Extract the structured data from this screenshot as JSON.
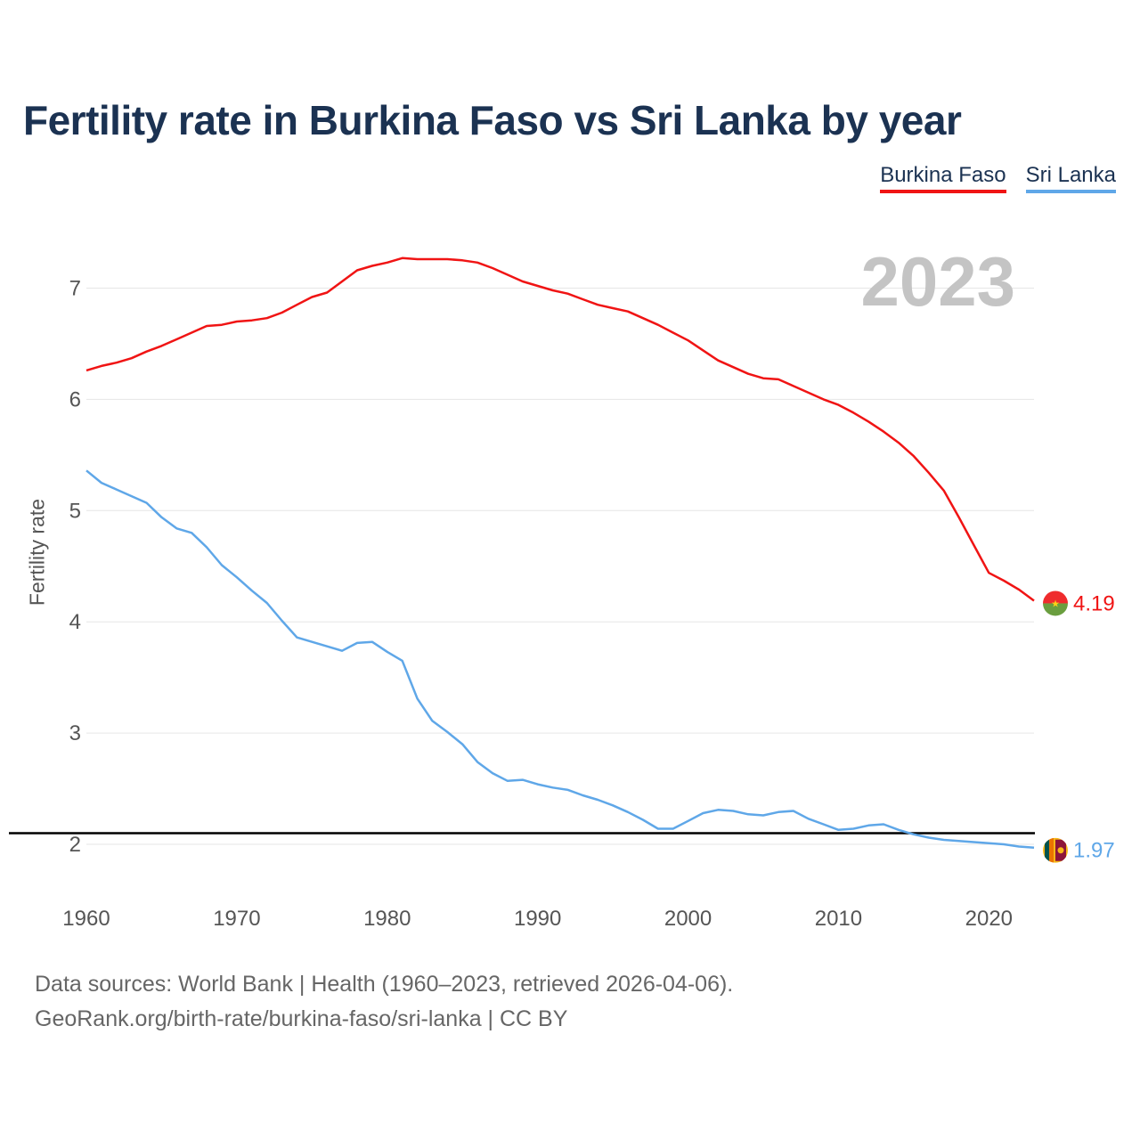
{
  "title": "Fertility rate in Burkina Faso vs Sri Lanka by year",
  "legend": [
    {
      "name": "Burkina Faso",
      "color": "#f01414"
    },
    {
      "name": "Sri Lanka",
      "color": "#5fa7e8"
    }
  ],
  "sources": {
    "line1": "Data sources: World Bank | Health (1960–2023, retrieved 2026-04-06).",
    "line2": "GeoRank.org/birth-rate/burkina-faso/sri-lanka | CC BY"
  },
  "chart_data": {
    "type": "line",
    "title": "Fertility rate in Burkina Faso vs Sri Lanka by year",
    "xlabel": "",
    "ylabel": "Fertility rate",
    "xlim": [
      1960,
      2023
    ],
    "ylim": [
      1.5,
      7.5
    ],
    "x_ticks": [
      1960,
      1970,
      1980,
      1990,
      2000,
      2010,
      2020
    ],
    "y_ticks": [
      2,
      3,
      4,
      5,
      6,
      7
    ],
    "year_label": "2023",
    "reference_line": 2.1,
    "x": [
      1960,
      1961,
      1962,
      1963,
      1964,
      1965,
      1966,
      1967,
      1968,
      1969,
      1970,
      1971,
      1972,
      1973,
      1974,
      1975,
      1976,
      1977,
      1978,
      1979,
      1980,
      1981,
      1982,
      1983,
      1984,
      1985,
      1986,
      1987,
      1988,
      1989,
      1990,
      1991,
      1992,
      1993,
      1994,
      1995,
      1996,
      1997,
      1998,
      1999,
      2000,
      2001,
      2002,
      2003,
      2004,
      2005,
      2006,
      2007,
      2008,
      2009,
      2010,
      2011,
      2012,
      2013,
      2014,
      2015,
      2016,
      2017,
      2018,
      2019,
      2020,
      2021,
      2022,
      2023
    ],
    "series": [
      {
        "name": "Burkina Faso",
        "color": "#f01414",
        "end_label": "4.19",
        "values": [
          6.26,
          6.3,
          6.33,
          6.37,
          6.43,
          6.48,
          6.54,
          6.6,
          6.66,
          6.67,
          6.7,
          6.71,
          6.73,
          6.78,
          6.85,
          6.92,
          6.96,
          7.06,
          7.16,
          7.2,
          7.23,
          7.27,
          7.26,
          7.26,
          7.26,
          7.25,
          7.23,
          7.18,
          7.12,
          7.06,
          7.02,
          6.98,
          6.95,
          6.9,
          6.85,
          6.82,
          6.79,
          6.73,
          6.67,
          6.6,
          6.53,
          6.44,
          6.35,
          6.29,
          6.23,
          6.19,
          6.18,
          6.12,
          6.06,
          6.0,
          5.95,
          5.88,
          5.8,
          5.71,
          5.61,
          5.49,
          5.34,
          5.18,
          4.94,
          4.69,
          4.44,
          4.37,
          4.29,
          4.19
        ]
      },
      {
        "name": "Sri Lanka",
        "color": "#5fa7e8",
        "end_label": "1.97",
        "values": [
          5.36,
          5.25,
          5.19,
          5.13,
          5.07,
          4.94,
          4.84,
          4.8,
          4.67,
          4.51,
          4.4,
          4.28,
          4.17,
          4.01,
          3.86,
          3.82,
          3.78,
          3.74,
          3.81,
          3.82,
          3.73,
          3.65,
          3.31,
          3.11,
          3.01,
          2.9,
          2.74,
          2.64,
          2.57,
          2.58,
          2.54,
          2.51,
          2.49,
          2.44,
          2.4,
          2.35,
          2.29,
          2.22,
          2.14,
          2.14,
          2.21,
          2.28,
          2.31,
          2.3,
          2.27,
          2.26,
          2.29,
          2.3,
          2.23,
          2.18,
          2.13,
          2.14,
          2.17,
          2.18,
          2.13,
          2.09,
          2.06,
          2.04,
          2.03,
          2.02,
          2.01,
          2.0,
          1.98,
          1.97
        ]
      }
    ]
  }
}
